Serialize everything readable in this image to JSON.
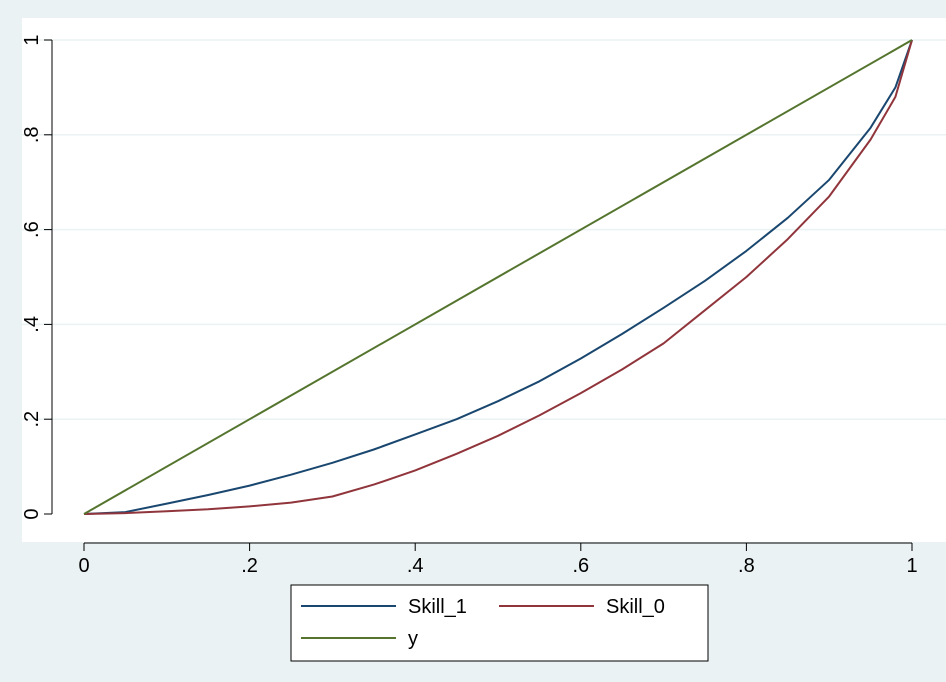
{
  "chart_data": {
    "type": "line",
    "title": "",
    "xlabel": "",
    "ylabel": "",
    "xlim": [
      0,
      1
    ],
    "ylim": [
      0,
      1
    ],
    "x_ticks": [
      {
        "value": 0,
        "label": "0"
      },
      {
        "value": 0.2,
        "label": ".2"
      },
      {
        "value": 0.4,
        "label": ".4"
      },
      {
        "value": 0.6,
        "label": ".6"
      },
      {
        "value": 0.8,
        "label": ".8"
      },
      {
        "value": 1,
        "label": "1"
      }
    ],
    "y_ticks": [
      {
        "value": 0,
        "label": "0"
      },
      {
        "value": 0.2,
        "label": ".2"
      },
      {
        "value": 0.4,
        "label": ".4"
      },
      {
        "value": 0.6,
        "label": ".6"
      },
      {
        "value": 0.8,
        "label": ".8"
      },
      {
        "value": 1,
        "label": "1"
      }
    ],
    "grid": "horizontal",
    "legend_position": "bottom",
    "series": [
      {
        "name": "Skill_1",
        "color": "#1a476f",
        "x": [
          0,
          0.05,
          0.1,
          0.15,
          0.2,
          0.25,
          0.3,
          0.35,
          0.4,
          0.45,
          0.5,
          0.55,
          0.6,
          0.65,
          0.7,
          0.75,
          0.8,
          0.85,
          0.9,
          0.95,
          0.98,
          1
        ],
        "y": [
          0,
          0.004,
          0.022,
          0.04,
          0.06,
          0.083,
          0.108,
          0.136,
          0.168,
          0.2,
          0.238,
          0.28,
          0.328,
          0.38,
          0.435,
          0.492,
          0.555,
          0.625,
          0.705,
          0.815,
          0.9,
          1
        ]
      },
      {
        "name": "Skill_0",
        "color": "#90353b",
        "x": [
          0,
          0.05,
          0.1,
          0.15,
          0.2,
          0.25,
          0.3,
          0.35,
          0.4,
          0.45,
          0.5,
          0.55,
          0.6,
          0.65,
          0.7,
          0.75,
          0.8,
          0.85,
          0.9,
          0.95,
          0.98,
          1
        ],
        "y": [
          0,
          0.002,
          0.006,
          0.01,
          0.016,
          0.024,
          0.037,
          0.062,
          0.092,
          0.127,
          0.165,
          0.208,
          0.255,
          0.305,
          0.36,
          0.43,
          0.5,
          0.58,
          0.67,
          0.79,
          0.88,
          1
        ]
      },
      {
        "name": "y",
        "color": "#55752f",
        "x": [
          0,
          1
        ],
        "y": [
          0,
          1
        ]
      }
    ]
  }
}
